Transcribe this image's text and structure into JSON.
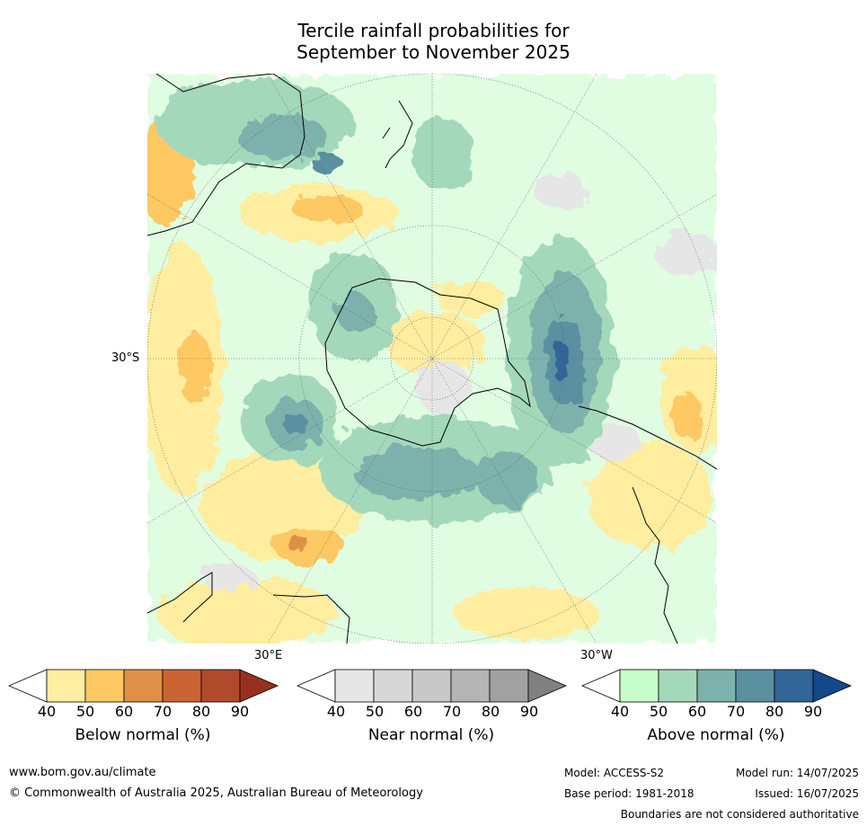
{
  "title": {
    "line1": "Tercile rainfall probabilities for",
    "line2": "September to November 2025"
  },
  "map": {
    "projection": "south-polar-stereographic",
    "lat_label": "30°S",
    "lon_labels": {
      "east": "30°E",
      "west": "30°W"
    }
  },
  "legends": [
    {
      "name": "below",
      "title": "Below normal (%)",
      "ticks": [
        "40",
        "50",
        "60",
        "70",
        "80",
        "90"
      ],
      "colors": [
        "#ffffff",
        "#ffeda0",
        "#fec863",
        "#de9047",
        "#cb6433",
        "#b04a2b",
        "#97311f"
      ]
    },
    {
      "name": "near",
      "title": "Near normal (%)",
      "ticks": [
        "40",
        "50",
        "60",
        "70",
        "80",
        "90"
      ],
      "colors": [
        "#ffffff",
        "#e6e6e6",
        "#d7d7d7",
        "#c8c8c8",
        "#b5b5b5",
        "#a1a1a1",
        "#808080"
      ]
    },
    {
      "name": "above",
      "title": "Above normal (%)",
      "ticks": [
        "40",
        "50",
        "60",
        "70",
        "80",
        "90"
      ],
      "colors": [
        "#ffffff",
        "#c7fccb",
        "#a4d8bb",
        "#7cb2ab",
        "#5a90a0",
        "#326598",
        "#11498a"
      ]
    }
  ],
  "footer": {
    "url": "www.bom.gov.au/climate",
    "copyright": "© Commonwealth of Australia 2025, Australian Bureau of Meteorology",
    "model": "Model: ACCESS-S2",
    "base_period": "Base period: 1981-2018",
    "model_run": "Model run: 14/07/2025",
    "issued": "Issued: 16/07/2025",
    "disclaimer": "Boundaries are not considered authoritative"
  }
}
